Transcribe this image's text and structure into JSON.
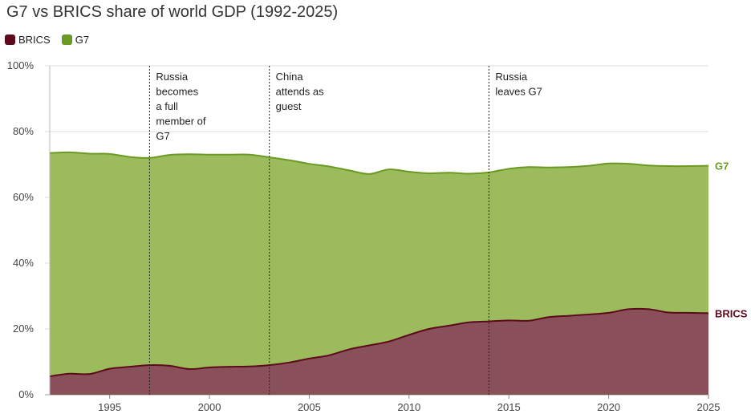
{
  "chart_data": {
    "type": "area",
    "title": "G7 vs BRICS share of world GDP (1992-2025)",
    "xlabel": "",
    "ylabel": "",
    "xlim": [
      1992,
      2025
    ],
    "ylim": [
      0,
      100
    ],
    "y_unit": "%",
    "x_ticks": [
      1995,
      2000,
      2005,
      2010,
      2015,
      2020,
      2025
    ],
    "y_ticks": [
      0,
      20,
      40,
      60,
      80,
      100
    ],
    "y_tick_labels": [
      "0%",
      "20%",
      "40%",
      "60%",
      "80%",
      "100%"
    ],
    "grid": "horizontal",
    "legend": "top-left",
    "x": [
      1992,
      1993,
      1994,
      1995,
      1996,
      1997,
      1998,
      1999,
      2000,
      2001,
      2002,
      2003,
      2004,
      2005,
      2006,
      2007,
      2008,
      2009,
      2010,
      2011,
      2012,
      2013,
      2014,
      2015,
      2016,
      2017,
      2018,
      2019,
      2020,
      2021,
      2022,
      2023,
      2024,
      2025
    ],
    "series": [
      {
        "name": "BRICS",
        "color": "#5c0a1c",
        "fill": "#8a505a",
        "values": [
          5.6,
          6.4,
          6.3,
          7.9,
          8.5,
          9.0,
          8.8,
          7.8,
          8.3,
          8.5,
          8.6,
          9.0,
          9.8,
          11.0,
          12.0,
          13.8,
          15.0,
          16.2,
          18.2,
          20.0,
          21.0,
          22.0,
          22.3,
          22.6,
          22.5,
          23.6,
          24.0,
          24.4,
          24.9,
          26.0,
          26.0,
          25.0,
          24.9,
          24.8
        ]
      },
      {
        "name": "G7",
        "color": "#6b9a22",
        "fill": "#9bbb5c",
        "values": [
          73.5,
          73.7,
          73.3,
          73.2,
          72.3,
          72.0,
          72.9,
          73.1,
          73.0,
          73.0,
          73.0,
          72.2,
          71.3,
          70.2,
          69.4,
          68.2,
          67.1,
          68.5,
          67.8,
          67.3,
          67.5,
          67.2,
          67.6,
          68.7,
          69.2,
          69.1,
          69.2,
          69.6,
          70.3,
          70.2,
          69.7,
          69.5,
          69.5,
          69.6
        ]
      }
    ],
    "annotations": [
      {
        "x": 1997,
        "lines": [
          "Russia",
          "becomes",
          "a full",
          "member of",
          "G7"
        ]
      },
      {
        "x": 2003,
        "lines": [
          "China",
          "attends as",
          "guest"
        ]
      },
      {
        "x": 2014,
        "lines": [
          "Russia",
          "leaves G7"
        ]
      }
    ],
    "end_labels": [
      {
        "series": "G7",
        "text": "G7"
      },
      {
        "series": "BRICS",
        "text": "BRICS"
      }
    ]
  }
}
